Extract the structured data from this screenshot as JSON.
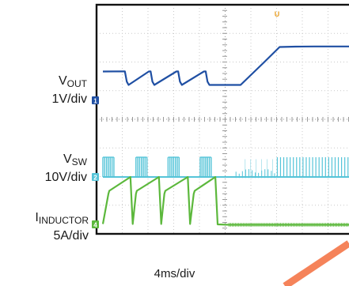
{
  "chart_data": {
    "type": "line",
    "time_per_div": "4ms/div",
    "grid": true,
    "horizontal_divisions": 10,
    "vertical_divisions": 8,
    "trigger_marker": "U",
    "channels": [
      {
        "id": "1",
        "name": "V",
        "name_sub": "OUT",
        "scale": "1V/div",
        "color": "#1f4fa3",
        "points": [
          [
            0.0,
            1.46
          ],
          [
            0.48,
            1.47
          ],
          [
            0.52,
            0.95
          ],
          [
            0.56,
            0.78
          ],
          [
            1.0,
            1.46
          ],
          [
            1.04,
            1.47
          ],
          [
            1.08,
            0.95
          ],
          [
            1.12,
            0.78
          ],
          [
            1.6,
            1.46
          ],
          [
            1.64,
            1.47
          ],
          [
            1.68,
            0.95
          ],
          [
            1.72,
            0.78
          ],
          [
            2.2,
            1.46
          ],
          [
            2.24,
            1.47
          ],
          [
            2.28,
            0.95
          ],
          [
            2.32,
            0.78
          ],
          [
            2.75,
            0.78
          ],
          [
            3.0,
            0.78
          ],
          [
            3.5,
            1.9
          ],
          [
            3.85,
            2.7
          ],
          [
            4.2,
            2.72
          ],
          [
            4.6,
            2.73
          ],
          [
            5.0,
            2.73
          ],
          [
            5.5,
            2.73
          ]
        ]
      },
      {
        "id": "2",
        "name": "V",
        "name_sub": "SW",
        "scale": "10V/div",
        "color": "#55c4d8",
        "pulses_x": [
          0.0,
          0.72,
          1.42,
          2.12
        ],
        "pulse_width": 0.24,
        "pulse_high": 1.0,
        "baseline": 0.0,
        "noise_region": [
          2.9,
          3.8
        ],
        "dense_region": [
          3.8,
          5.5
        ]
      },
      {
        "id": "4",
        "name": "I",
        "name_sub": "INDUCTOR",
        "scale": "5A/div",
        "color": "#5cb83c",
        "points": [
          [
            0.0,
            0.02
          ],
          [
            0.12,
            1.55
          ],
          [
            0.14,
            1.7
          ],
          [
            0.6,
            2.4
          ],
          [
            0.65,
            0.02
          ],
          [
            0.72,
            1.55
          ],
          [
            0.74,
            1.7
          ],
          [
            1.22,
            2.4
          ],
          [
            1.27,
            0.02
          ],
          [
            1.34,
            1.55
          ],
          [
            1.36,
            1.7
          ],
          [
            1.85,
            2.4
          ],
          [
            1.9,
            0.02
          ],
          [
            1.98,
            1.55
          ],
          [
            2.0,
            1.7
          ],
          [
            2.45,
            2.4
          ],
          [
            2.5,
            0.0
          ],
          [
            2.75,
            -0.02
          ],
          [
            5.5,
            -0.02
          ]
        ]
      }
    ]
  }
}
